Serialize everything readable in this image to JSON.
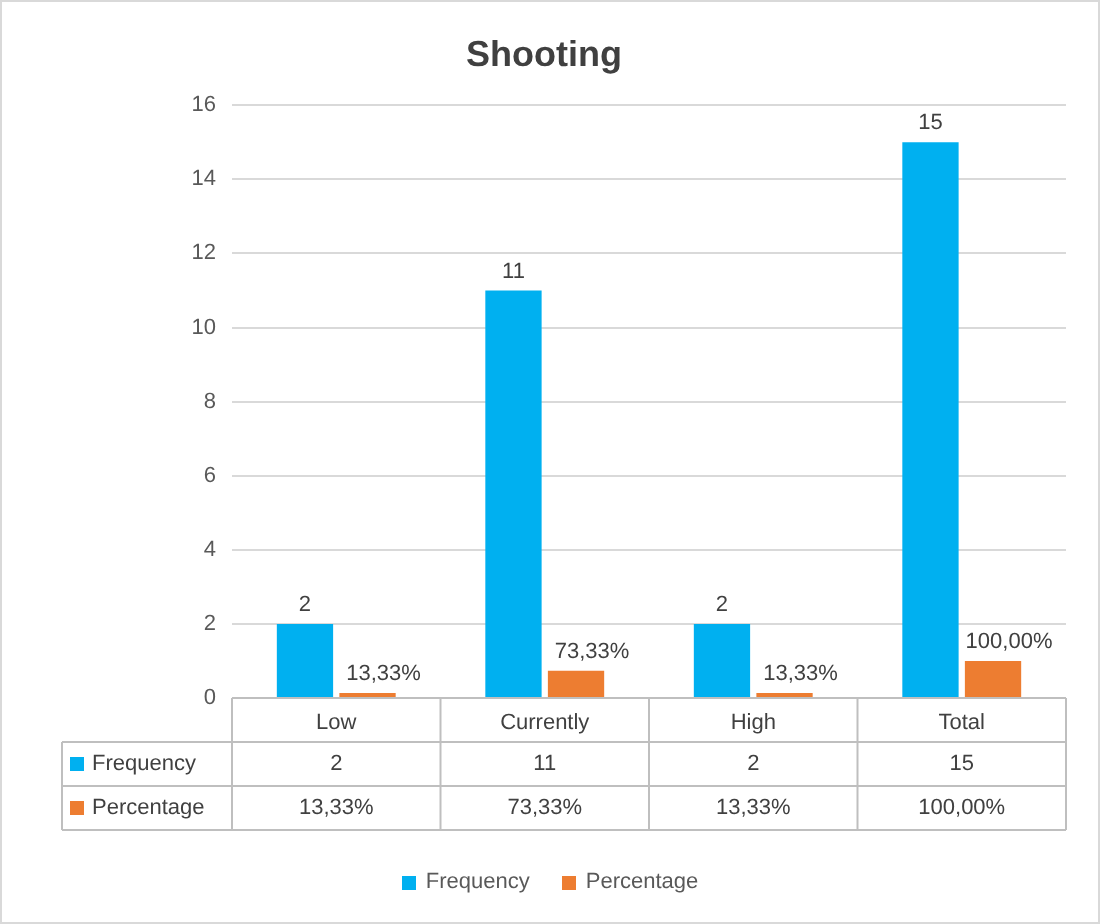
{
  "chart_data": {
    "type": "bar",
    "title": "Shooting",
    "categories": [
      "Low",
      "Currently",
      "High",
      "Total"
    ],
    "series": [
      {
        "name": "Frequency",
        "color": "#00b0f0",
        "values": [
          2,
          11,
          2,
          15
        ],
        "value_labels": [
          "2",
          "11",
          "2",
          "15"
        ]
      },
      {
        "name": "Percentage",
        "color": "#ed7d31",
        "values": [
          0.1333,
          0.7333,
          0.1333,
          1
        ],
        "value_labels": [
          "13,33%",
          "73,33%",
          "13,33%",
          "100,00%"
        ]
      }
    ],
    "ylim": [
      0,
      16
    ],
    "yticks": [
      0,
      2,
      4,
      6,
      8,
      10,
      12,
      14,
      16
    ],
    "grid": "y",
    "legend": "bottom"
  }
}
